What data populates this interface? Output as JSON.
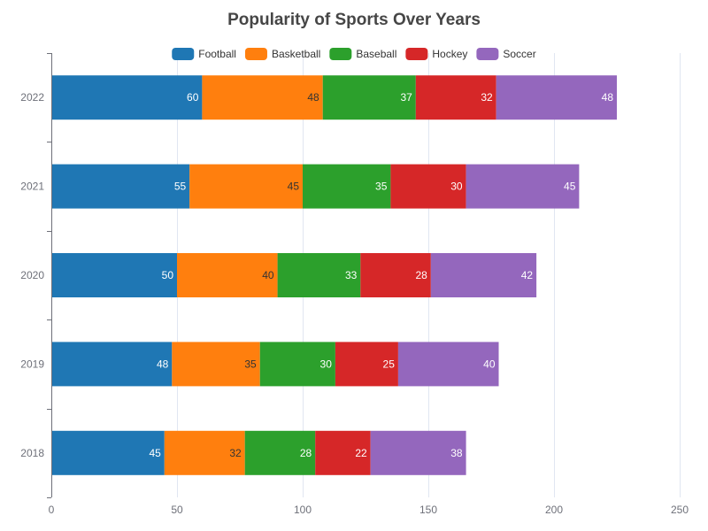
{
  "chart_data": {
    "type": "bar",
    "orientation": "horizontal",
    "stacked": true,
    "title": "Popularity of Sports Over Years",
    "categories": [
      "2018",
      "2019",
      "2020",
      "2021",
      "2022"
    ],
    "series": [
      {
        "name": "Football",
        "color": "#1f77b4",
        "label_color": "#ffffff",
        "values": [
          45,
          48,
          50,
          55,
          60
        ]
      },
      {
        "name": "Basketball",
        "color": "#ff7f0e",
        "label_color": "#333333",
        "values": [
          32,
          35,
          40,
          45,
          48
        ]
      },
      {
        "name": "Baseball",
        "color": "#2ca02c",
        "label_color": "#ffffff",
        "values": [
          28,
          30,
          33,
          35,
          37
        ]
      },
      {
        "name": "Hockey",
        "color": "#d62728",
        "label_color": "#ffffff",
        "values": [
          22,
          25,
          28,
          30,
          32
        ]
      },
      {
        "name": "Soccer",
        "color": "#9467bd",
        "label_color": "#ffffff",
        "values": [
          38,
          40,
          42,
          45,
          48
        ]
      }
    ],
    "xlim": [
      0,
      250
    ],
    "xticks": [
      0,
      50,
      100,
      150,
      200,
      250
    ],
    "xlabel": "",
    "ylabel": "",
    "grid": true,
    "legend": "top-center"
  }
}
